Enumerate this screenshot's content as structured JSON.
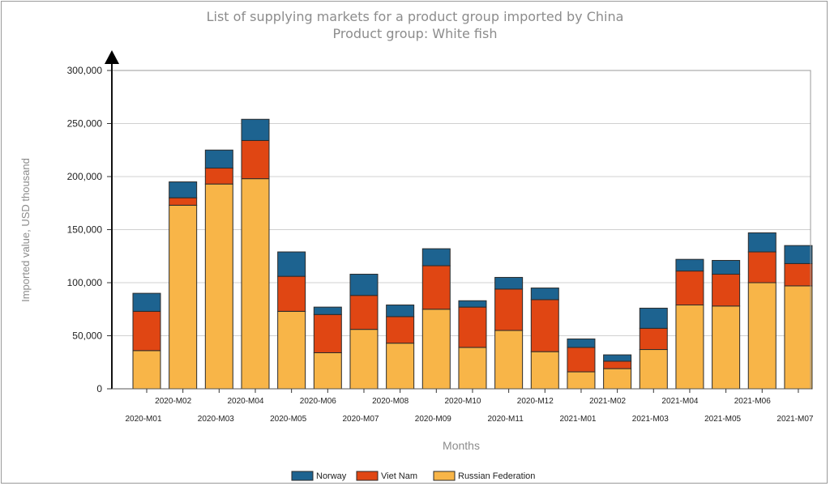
{
  "chart_data": {
    "type": "bar",
    "stacked": true,
    "title": "List of supplying markets for a product group imported by China",
    "subtitle": "Product group: White fish",
    "xlabel": "Months",
    "ylabel": "Imported value, USD thousand",
    "ylim": [
      0,
      300000
    ],
    "yticks": [
      "0",
      "50,000",
      "100,000",
      "150,000",
      "200,000",
      "250,000",
      "300,000"
    ],
    "categories": [
      "2020-M01",
      "2020-M02",
      "2020-M03",
      "2020-M04",
      "2020-M05",
      "2020-M06",
      "2020-M07",
      "2020-M08",
      "2020-M09",
      "2020-M10",
      "2020-M11",
      "2020-M12",
      "2021-M01",
      "2021-M02",
      "2021-M03",
      "2021-M04",
      "2021-M05",
      "2021-M06",
      "2021-M07"
    ],
    "series": [
      {
        "name": "Russian Federation",
        "color": "#f8b548",
        "values": [
          36000,
          173000,
          193000,
          198000,
          73000,
          34000,
          56000,
          43000,
          75000,
          39000,
          55000,
          35000,
          16000,
          19000,
          37000,
          79000,
          78000,
          100000,
          97000
        ]
      },
      {
        "name": "Viet Nam",
        "color": "#e04613",
        "values": [
          37000,
          7000,
          15000,
          36000,
          33000,
          36000,
          32000,
          25000,
          41000,
          38000,
          39000,
          49000,
          23000,
          7000,
          20000,
          32000,
          30000,
          29000,
          21000
        ]
      },
      {
        "name": "Norway",
        "color": "#1d6390",
        "values": [
          17000,
          15000,
          17000,
          20000,
          23000,
          7000,
          20000,
          11000,
          16000,
          6000,
          11000,
          11000,
          8000,
          6000,
          19000,
          11000,
          13000,
          18000,
          17000
        ]
      }
    ],
    "legend_order": [
      "Norway",
      "Viet Nam",
      "Russian Federation"
    ],
    "legend_position": "bottom",
    "grid": true
  }
}
